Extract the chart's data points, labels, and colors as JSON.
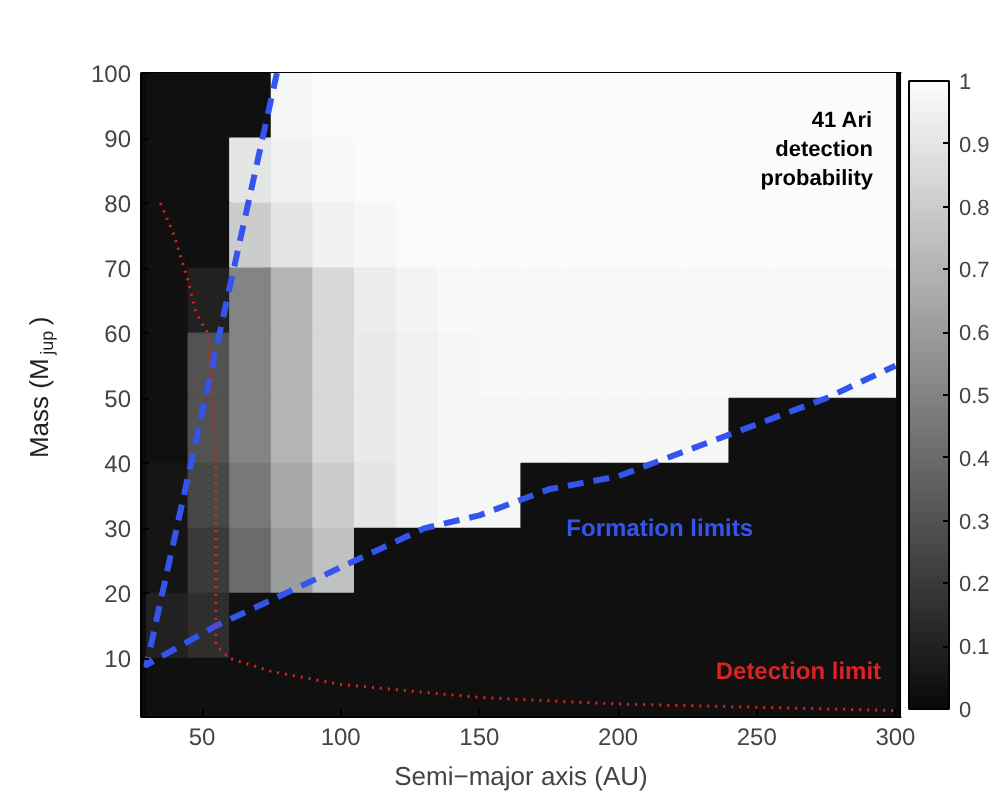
{
  "chart_data": {
    "type": "heatmap",
    "xlabel": "Semi−major axis (AU)",
    "ylabel": "Mass (M$_{jup}$)",
    "xlim": [
      28,
      302
    ],
    "ylim": [
      1,
      100
    ],
    "xticks": [
      50,
      100,
      150,
      200,
      250,
      300
    ],
    "yticks": [
      10,
      20,
      30,
      40,
      50,
      60,
      70,
      80,
      90,
      100
    ],
    "x": [
      37.5,
      52.5,
      67.5,
      82.5,
      97.5,
      112.5,
      127.5,
      142.5,
      157.5,
      172.5,
      187.5,
      202.5,
      217.5,
      232.5,
      247.5,
      262.5,
      277.5,
      292.5
    ],
    "y": [
      95,
      85,
      75,
      65,
      55,
      45,
      35,
      25,
      15,
      5
    ],
    "cells": [
      [
        0.03,
        0.03,
        0.03,
        0.97,
        0.99,
        0.99,
        0.99,
        0.99,
        0.99,
        0.99,
        0.99,
        0.99,
        0.99,
        0.99,
        0.99,
        0.99,
        0.99,
        0.99
      ],
      [
        0.03,
        0.03,
        0.9,
        0.95,
        0.98,
        0.99,
        0.99,
        0.99,
        0.99,
        0.99,
        0.99,
        0.99,
        0.99,
        0.99,
        0.99,
        0.99,
        0.99,
        0.99
      ],
      [
        0.03,
        0.03,
        0.8,
        0.9,
        0.95,
        0.97,
        0.99,
        0.99,
        0.99,
        0.99,
        0.99,
        0.99,
        0.99,
        0.99,
        0.99,
        0.99,
        0.99,
        0.99
      ],
      [
        0.03,
        0.1,
        0.5,
        0.7,
        0.85,
        0.93,
        0.96,
        0.98,
        0.98,
        0.98,
        0.98,
        0.98,
        0.98,
        0.98,
        0.98,
        0.98,
        0.98,
        0.98
      ],
      [
        0.03,
        0.3,
        0.5,
        0.7,
        0.85,
        0.92,
        0.95,
        0.97,
        0.98,
        0.98,
        0.98,
        0.98,
        0.98,
        0.98,
        0.98,
        0.98,
        0.98,
        0.98
      ],
      [
        0.03,
        0.3,
        0.5,
        0.7,
        0.85,
        0.92,
        0.95,
        0.97,
        0.97,
        0.97,
        0.97,
        0.97,
        0.97,
        0.97,
        0.03,
        0.03,
        0.03,
        0.03
      ],
      [
        0.05,
        0.25,
        0.45,
        0.65,
        0.8,
        0.9,
        0.95,
        0.97,
        0.97,
        0.03,
        0.03,
        0.03,
        0.03,
        0.03,
        0.03,
        0.03,
        0.03,
        0.03
      ],
      [
        0.05,
        0.2,
        0.4,
        0.6,
        0.75,
        0.03,
        0.03,
        0.03,
        0.03,
        0.03,
        0.03,
        0.03,
        0.03,
        0.03,
        0.03,
        0.03,
        0.03,
        0.03
      ],
      [
        0.1,
        0.15,
        0.03,
        0.03,
        0.03,
        0.03,
        0.03,
        0.03,
        0.03,
        0.03,
        0.03,
        0.03,
        0.03,
        0.03,
        0.03,
        0.03,
        0.03,
        0.03
      ],
      [
        0.03,
        0.03,
        0.03,
        0.03,
        0.03,
        0.03,
        0.03,
        0.03,
        0.03,
        0.03,
        0.03,
        0.03,
        0.03,
        0.03,
        0.03,
        0.03,
        0.03,
        0.03
      ]
    ],
    "clim": [
      0,
      1
    ],
    "cticks": [
      0,
      0.1,
      0.2,
      0.3,
      0.4,
      0.5,
      0.6,
      0.7,
      0.8,
      0.9,
      1
    ],
    "series": [
      {
        "type": "line",
        "color": "#3355ee",
        "line_style": "dashed",
        "x": [
          77,
          30,
          55,
          75,
          100,
          130,
          150,
          175,
          200,
          225,
          250,
          275,
          300
        ],
        "values": [
          100,
          9,
          15,
          19,
          24,
          30,
          32,
          36,
          38,
          42,
          46,
          50,
          55
        ]
      },
      {
        "type": "line",
        "color": "#dd2222",
        "line_style": "dotted",
        "x": [
          35,
          40,
          45,
          48,
          52,
          54,
          55,
          55,
          55,
          60,
          75,
          100,
          150,
          200,
          250,
          300
        ],
        "values": [
          80,
          75,
          68,
          63,
          60,
          50,
          40,
          25,
          12,
          10,
          8,
          6,
          4,
          3,
          2.5,
          2
        ]
      }
    ],
    "annotations": [
      "41 Ari\ndetection\nprobability",
      "Formation limits",
      "Detection limit"
    ],
    "grid": false
  }
}
